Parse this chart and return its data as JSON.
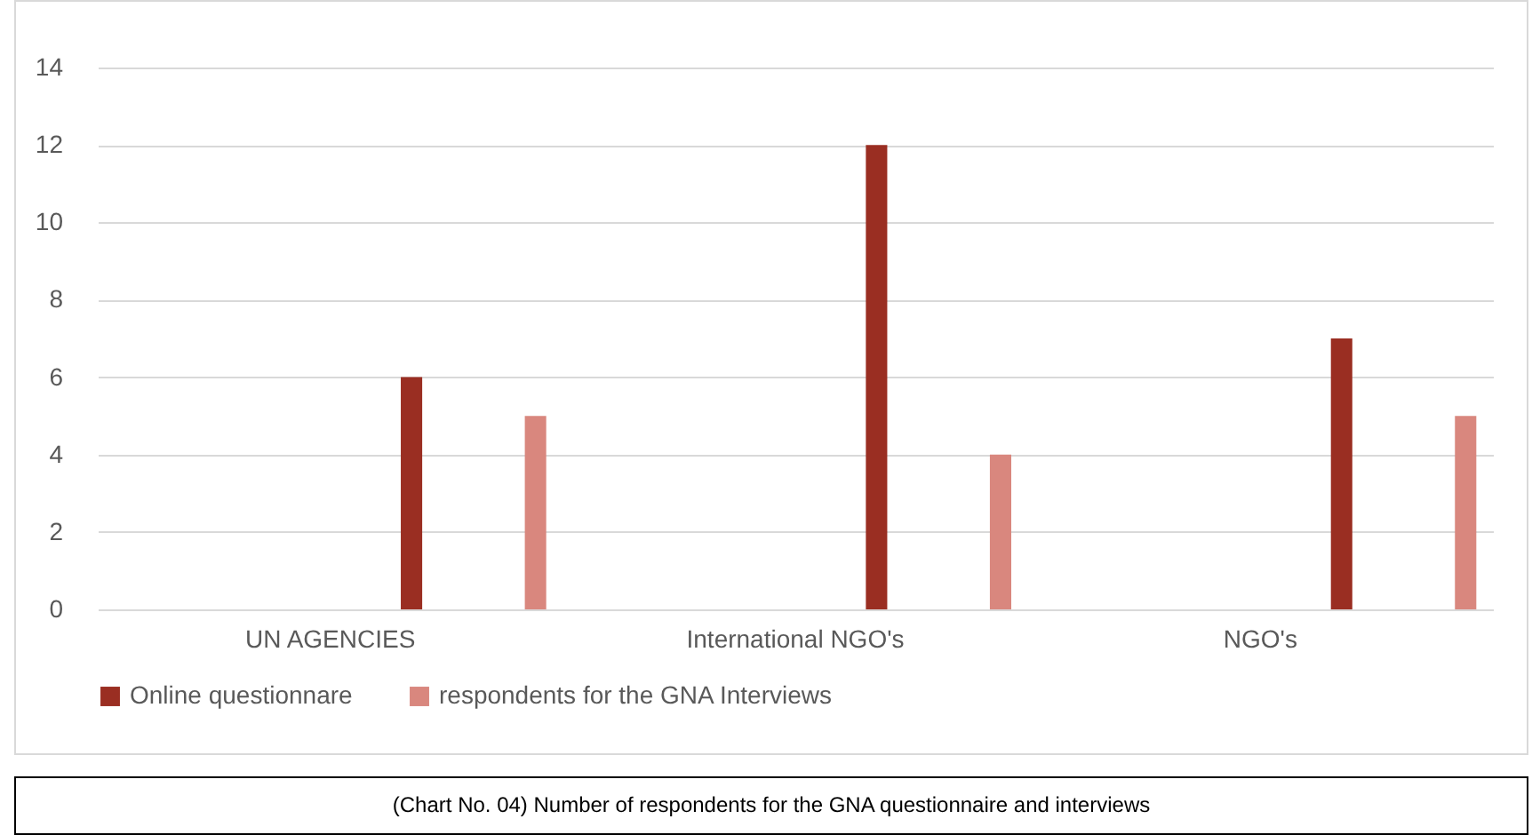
{
  "chart_data": {
    "type": "bar",
    "categories": [
      "UN AGENCIES",
      "International NGO's",
      "NGO's"
    ],
    "series": [
      {
        "name": "Online questionnare",
        "color": "#9a2e22",
        "values": [
          6,
          12,
          7
        ]
      },
      {
        "name": "respondents for the GNA Interviews",
        "color": "#d9877e",
        "values": [
          5,
          4,
          5
        ]
      }
    ],
    "ylim": [
      0,
      14
    ],
    "yticks": [
      0,
      2,
      4,
      6,
      8,
      10,
      12,
      14
    ],
    "grid": "y",
    "legend": "bottom",
    "annotations": [
      "(Chart No. 04) Number of respondents for the GNA questionnaire and interviews"
    ]
  }
}
